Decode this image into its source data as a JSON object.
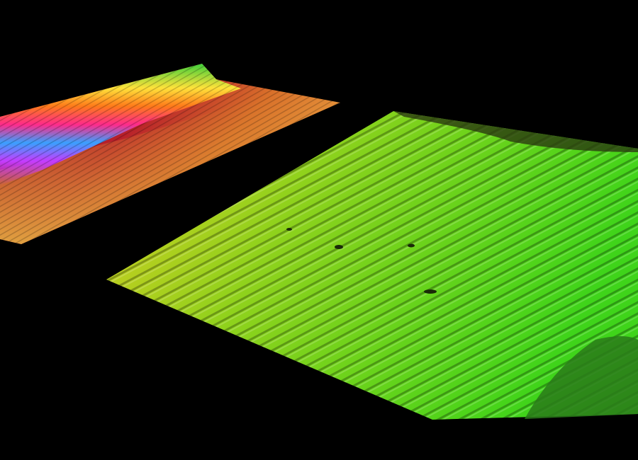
{
  "scene": {
    "background_color": "#000000",
    "left_surface": {
      "colors": [
        "#7cff3a",
        "#ffe23a",
        "#ff7a1a",
        "#ff2a8a",
        "#c43cff",
        "#3aa0ff",
        "#b81e2e",
        "#e08a2a"
      ]
    },
    "right_surface": {
      "colors": [
        "#d6d020",
        "#8fd21c",
        "#3fd41a",
        "#2a8a1a"
      ]
    }
  }
}
